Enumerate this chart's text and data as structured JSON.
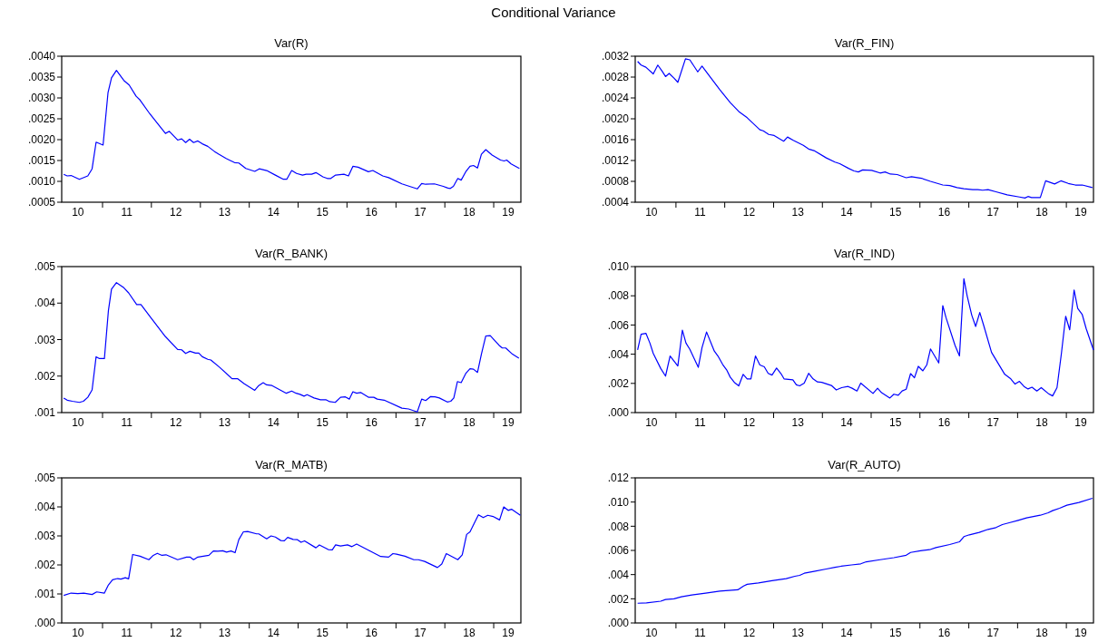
{
  "chart_data": [
    {
      "type": "line",
      "title": "Var(R)",
      "annotations": [
        "Conditional Variance"
      ],
      "xlim": [
        "2010-03-02",
        "2019-07-23"
      ],
      "ylim": [
        0.0005,
        0.004
      ],
      "grid": false,
      "xticks": [
        {
          "value": "2010-07-01",
          "label": "10"
        },
        {
          "value": "2011-01-01",
          "label": null
        },
        {
          "value": "2011-07-01",
          "label": "11"
        },
        {
          "value": "2012-01-01",
          "label": null
        },
        {
          "value": "2012-07-01",
          "label": "12"
        },
        {
          "value": "2013-01-01",
          "label": null
        },
        {
          "value": "2013-07-01",
          "label": "13"
        },
        {
          "value": "2014-01-01",
          "label": null
        },
        {
          "value": "2014-07-01",
          "label": "14"
        },
        {
          "value": "2015-01-01",
          "label": null
        },
        {
          "value": "2015-07-01",
          "label": "15"
        },
        {
          "value": "2016-01-01",
          "label": null
        },
        {
          "value": "2016-07-01",
          "label": "16"
        },
        {
          "value": "2017-01-01",
          "label": null
        },
        {
          "value": "2017-07-01",
          "label": "17"
        },
        {
          "value": "2018-01-01",
          "label": null
        },
        {
          "value": "2018-07-01",
          "label": "18"
        },
        {
          "value": "2019-01-01",
          "label": null
        },
        {
          "value": "2019-04-19",
          "label": "19"
        }
      ],
      "yticks": [
        {
          "value": 0.0005,
          "label": ".0005"
        },
        {
          "value": 0.001,
          "label": ".0010"
        },
        {
          "value": 0.0015,
          "label": ".0015"
        },
        {
          "value": 0.002,
          "label": ".0020"
        },
        {
          "value": 0.0025,
          "label": ".0025"
        },
        {
          "value": 0.003,
          "label": ".0030"
        },
        {
          "value": 0.0035,
          "label": ".0035"
        },
        {
          "value": 0.004,
          "label": ".0040"
        }
      ],
      "series": [
        {
          "color": "#0000ff",
          "x": [
            "2010-03-17",
            "2010-04-12",
            "2010-05-11",
            "2010-07-12",
            "2010-09-13",
            "2010-10-15",
            "2010-11-14",
            "2011-01-05",
            "2011-02-11",
            "2011-03-09",
            "2011-04-15",
            "2011-06-09",
            "2011-07-19",
            "2011-09-09",
            "2011-10-08",
            "2011-12-20",
            "2012-02-25",
            "2012-04-15",
            "2012-05-14",
            "2012-07-15",
            "2012-08-14",
            "2012-09-13",
            "2012-10-12",
            "2012-11-11",
            "2012-12-13",
            "2013-01-15",
            "2013-02-25",
            "2013-04-15",
            "2013-05-18",
            "2013-07-12",
            "2013-09-13",
            "2013-10-15",
            "2013-12-06",
            "2014-02-11",
            "2014-03-17",
            "2014-05-11",
            "2014-07-15",
            "2014-09-13",
            "2014-10-08",
            "2014-11-14",
            "2014-12-20",
            "2015-02-03",
            "2015-03-02",
            "2015-04-12",
            "2015-05-14",
            "2015-07-05",
            "2015-08-07",
            "2015-09-02",
            "2015-10-08",
            "2015-12-09",
            "2016-01-12",
            "2016-02-14",
            "2016-03-24",
            "2016-06-09",
            "2016-07-12",
            "2016-09-24",
            "2016-11-07",
            "2017-02-14",
            "2017-04-12",
            "2017-06-09",
            "2017-07-12",
            "2017-08-11",
            "2017-10-15",
            "2017-12-20",
            "2018-01-23",
            "2018-02-11",
            "2018-03-06",
            "2018-04-08",
            "2018-05-03",
            "2018-06-06",
            "2018-07-08",
            "2018-08-03",
            "2018-09-02",
            "2018-10-01",
            "2018-11-03",
            "2018-12-20",
            "2019-02-21",
            "2019-03-20",
            "2019-04-08",
            "2019-05-11",
            "2019-07-12"
          ],
          "values": [
            0.00117,
            0.00113,
            0.00114,
            0.00105,
            0.00113,
            0.0013,
            0.00194,
            0.00187,
            0.00313,
            0.00348,
            0.00366,
            0.00342,
            0.00331,
            0.00304,
            0.00295,
            0.00262,
            0.00235,
            0.00215,
            0.0022,
            0.00199,
            0.00202,
            0.00193,
            0.00201,
            0.00193,
            0.00197,
            0.0019,
            0.00184,
            0.00172,
            0.00165,
            0.00155,
            0.00145,
            0.00144,
            0.00131,
            0.00124,
            0.0013,
            0.00126,
            0.00115,
            0.00105,
            0.00105,
            0.00126,
            0.00119,
            0.00115,
            0.00117,
            0.00117,
            0.00121,
            0.00111,
            0.00107,
            0.00107,
            0.00115,
            0.00117,
            0.00113,
            0.00136,
            0.00134,
            0.00123,
            0.00126,
            0.00113,
            0.00109,
            0.00094,
            0.00088,
            0.00082,
            0.00095,
            0.00093,
            0.00094,
            0.00088,
            0.00084,
            0.00083,
            0.00088,
            0.00107,
            0.00103,
            0.00123,
            0.00136,
            0.00138,
            0.00132,
            0.00165,
            0.00176,
            0.00163,
            0.00151,
            0.00149,
            0.00151,
            0.00142,
            0.00131
          ]
        }
      ]
    },
    {
      "type": "line",
      "title": "Var(R_FIN)",
      "xlim": [
        "2010-03-02",
        "2019-07-23"
      ],
      "ylim": [
        0.0004,
        0.0032
      ],
      "grid": false,
      "xticks": [
        {
          "value": "2010-07-01",
          "label": "10"
        },
        {
          "value": "2011-01-01",
          "label": null
        },
        {
          "value": "2011-07-01",
          "label": "11"
        },
        {
          "value": "2012-01-01",
          "label": null
        },
        {
          "value": "2012-07-01",
          "label": "12"
        },
        {
          "value": "2013-01-01",
          "label": null
        },
        {
          "value": "2013-07-01",
          "label": "13"
        },
        {
          "value": "2014-01-01",
          "label": null
        },
        {
          "value": "2014-07-01",
          "label": "14"
        },
        {
          "value": "2015-01-01",
          "label": null
        },
        {
          "value": "2015-07-01",
          "label": "15"
        },
        {
          "value": "2016-01-01",
          "label": null
        },
        {
          "value": "2016-07-01",
          "label": "16"
        },
        {
          "value": "2017-01-01",
          "label": null
        },
        {
          "value": "2017-07-01",
          "label": "17"
        },
        {
          "value": "2018-01-01",
          "label": null
        },
        {
          "value": "2018-07-01",
          "label": "18"
        },
        {
          "value": "2019-01-01",
          "label": null
        },
        {
          "value": "2019-04-19",
          "label": "19"
        }
      ],
      "yticks": [
        {
          "value": 0.0004,
          "label": ".0004"
        },
        {
          "value": 0.0008,
          "label": ".0008"
        },
        {
          "value": 0.0012,
          "label": ".0012"
        },
        {
          "value": 0.0016,
          "label": ".0016"
        },
        {
          "value": 0.002,
          "label": ".0020"
        },
        {
          "value": 0.0024,
          "label": ".0024"
        },
        {
          "value": 0.0028,
          "label": ".0028"
        },
        {
          "value": 0.0032,
          "label": ".0032"
        }
      ],
      "series": [
        {
          "color": "#0000ff",
          "x": [
            "2010-03-20",
            "2010-04-15",
            "2010-05-21",
            "2010-07-15",
            "2010-08-18",
            "2010-09-20",
            "2010-10-15",
            "2010-11-11",
            "2010-12-17",
            "2011-01-15",
            "2011-03-13",
            "2011-04-15",
            "2011-06-13",
            "2011-07-15",
            "2011-09-09",
            "2011-11-25",
            "2012-02-11",
            "2012-04-15",
            "2012-06-17",
            "2012-09-20",
            "2012-10-15",
            "2012-11-25",
            "2013-01-05",
            "2013-02-11",
            "2013-03-17",
            "2013-04-15",
            "2013-05-25",
            "2013-08-11",
            "2013-09-20",
            "2013-10-30",
            "2014-01-30",
            "2014-04-05",
            "2014-05-11",
            "2014-07-15",
            "2014-08-25",
            "2014-09-27",
            "2014-10-30",
            "2015-01-05",
            "2015-03-09",
            "2015-04-15",
            "2015-05-25",
            "2015-07-15",
            "2015-09-20",
            "2015-10-30",
            "2016-01-12",
            "2016-03-20",
            "2016-06-20",
            "2016-08-11",
            "2016-10-05",
            "2016-11-25",
            "2017-01-30",
            "2017-03-09",
            "2017-04-15",
            "2017-05-25",
            "2017-07-23",
            "2017-10-15",
            "2018-01-15",
            "2018-02-25",
            "2018-03-20",
            "2018-04-15",
            "2018-06-20",
            "2018-07-30",
            "2018-10-05",
            "2018-11-21",
            "2019-01-15",
            "2019-03-09",
            "2019-04-30",
            "2019-07-15"
          ],
          "values": [
            0.0031,
            0.00303,
            0.00299,
            0.00286,
            0.00303,
            0.00291,
            0.00281,
            0.00287,
            0.00278,
            0.0027,
            0.00315,
            0.00313,
            0.0029,
            0.00301,
            0.00282,
            0.00256,
            0.00231,
            0.00214,
            0.00202,
            0.00179,
            0.00177,
            0.0017,
            0.00168,
            0.00162,
            0.00157,
            0.00165,
            0.00159,
            0.00149,
            0.00142,
            0.00139,
            0.00125,
            0.00117,
            0.00114,
            0.00105,
            0.001,
            0.00098,
            0.00102,
            0.00101,
            0.00096,
            0.00098,
            0.00094,
            0.00093,
            0.00087,
            0.00089,
            0.00086,
            0.0008,
            0.00073,
            0.00072,
            0.00068,
            0.00066,
            0.00064,
            0.00064,
            0.00063,
            0.00064,
            0.0006,
            0.00054,
            0.0005,
            0.00048,
            0.00051,
            0.00049,
            0.00049,
            0.00081,
            0.00075,
            0.00081,
            0.00076,
            0.00073,
            0.00073,
            0.00068
          ]
        }
      ]
    },
    {
      "type": "line",
      "title": "Var(R_BANK)",
      "xlim": [
        "2010-03-02",
        "2019-07-23"
      ],
      "ylim": [
        0.001,
        0.005
      ],
      "grid": false,
      "xticks": [
        {
          "value": "2010-07-01",
          "label": "10"
        },
        {
          "value": "2011-01-01",
          "label": null
        },
        {
          "value": "2011-07-01",
          "label": "11"
        },
        {
          "value": "2012-01-01",
          "label": null
        },
        {
          "value": "2012-07-01",
          "label": "12"
        },
        {
          "value": "2013-01-01",
          "label": null
        },
        {
          "value": "2013-07-01",
          "label": "13"
        },
        {
          "value": "2014-01-01",
          "label": null
        },
        {
          "value": "2014-07-01",
          "label": "14"
        },
        {
          "value": "2015-01-01",
          "label": null
        },
        {
          "value": "2015-07-01",
          "label": "15"
        },
        {
          "value": "2016-01-01",
          "label": null
        },
        {
          "value": "2016-07-01",
          "label": "16"
        },
        {
          "value": "2017-01-01",
          "label": null
        },
        {
          "value": "2017-07-01",
          "label": "17"
        },
        {
          "value": "2018-01-01",
          "label": null
        },
        {
          "value": "2018-07-01",
          "label": "18"
        },
        {
          "value": "2019-01-01",
          "label": null
        },
        {
          "value": "2019-04-19",
          "label": "19"
        }
      ],
      "yticks": [
        {
          "value": 0.001,
          "label": ".001"
        },
        {
          "value": 0.002,
          "label": ".002"
        },
        {
          "value": 0.003,
          "label": ".003"
        },
        {
          "value": 0.004,
          "label": ".004"
        },
        {
          "value": 0.005,
          "label": ".005"
        }
      ],
      "series": [
        {
          "color": "#0000ff",
          "x": [
            "2010-03-17",
            "2010-04-12",
            "2010-05-21",
            "2010-07-12",
            "2010-08-11",
            "2010-09-13",
            "2010-10-15",
            "2010-11-14",
            "2010-12-09",
            "2011-01-15",
            "2011-02-14",
            "2011-03-09",
            "2011-04-15",
            "2011-06-09",
            "2011-07-15",
            "2011-09-13",
            "2011-10-15",
            "2012-01-01",
            "2012-04-15",
            "2012-07-15",
            "2012-08-14",
            "2012-09-13",
            "2012-10-15",
            "2012-11-25",
            "2012-12-20",
            "2013-01-15",
            "2013-02-25",
            "2013-03-20",
            "2013-05-25",
            "2013-08-25",
            "2013-10-05",
            "2013-11-25",
            "2014-02-11",
            "2014-03-13",
            "2014-04-15",
            "2014-05-11",
            "2014-06-20",
            "2014-10-05",
            "2014-11-14",
            "2014-12-17",
            "2015-01-15",
            "2015-02-14",
            "2015-03-09",
            "2015-04-30",
            "2015-06-17",
            "2015-07-30",
            "2015-08-25",
            "2015-10-05",
            "2015-11-14",
            "2015-12-20",
            "2016-01-19",
            "2016-02-14",
            "2016-03-13",
            "2016-04-12",
            "2016-06-09",
            "2016-07-19",
            "2016-08-14",
            "2016-10-05",
            "2017-02-14",
            "2017-04-05",
            "2017-06-09",
            "2017-07-12",
            "2017-08-11",
            "2017-09-17",
            "2017-10-19",
            "2017-11-21",
            "2018-01-19",
            "2018-02-14",
            "2018-03-09",
            "2018-04-05",
            "2018-05-03",
            "2018-06-06",
            "2018-07-08",
            "2018-08-03",
            "2018-09-02",
            "2018-10-01",
            "2018-11-03",
            "2018-12-06",
            "2019-02-11",
            "2019-03-06",
            "2019-04-01",
            "2019-05-21",
            "2019-07-08"
          ],
          "values": [
            0.0014,
            0.00134,
            0.00131,
            0.00128,
            0.00131,
            0.00142,
            0.00162,
            0.00253,
            0.00248,
            0.00248,
            0.0038,
            0.00438,
            0.00456,
            0.00442,
            0.00428,
            0.00396,
            0.00396,
            0.00358,
            0.00308,
            0.00273,
            0.00272,
            0.00262,
            0.00268,
            0.00263,
            0.00263,
            0.00253,
            0.00246,
            0.00244,
            0.00224,
            0.00193,
            0.00193,
            0.00179,
            0.00161,
            0.00174,
            0.00182,
            0.00176,
            0.00174,
            0.00153,
            0.00159,
            0.00153,
            0.0015,
            0.00145,
            0.00149,
            0.0014,
            0.00135,
            0.00135,
            0.0013,
            0.00128,
            0.00142,
            0.00143,
            0.00137,
            0.00157,
            0.00153,
            0.00155,
            0.00142,
            0.00142,
            0.00137,
            0.00134,
            0.00112,
            0.0011,
            0.00102,
            0.00137,
            0.00133,
            0.00144,
            0.00143,
            0.0014,
            0.00129,
            0.00131,
            0.0014,
            0.00185,
            0.00182,
            0.00207,
            0.0022,
            0.00219,
            0.0021,
            0.0026,
            0.0031,
            0.00311,
            0.00284,
            0.00277,
            0.00277,
            0.0026,
            0.00249
          ]
        }
      ]
    },
    {
      "type": "line",
      "title": "Var(R_IND)",
      "xlim": [
        "2010-03-02",
        "2019-07-23"
      ],
      "ylim": [
        0,
        0.01
      ],
      "grid": false,
      "xticks": [
        {
          "value": "2010-07-01",
          "label": "10"
        },
        {
          "value": "2011-01-01",
          "label": null
        },
        {
          "value": "2011-07-01",
          "label": "11"
        },
        {
          "value": "2012-01-01",
          "label": null
        },
        {
          "value": "2012-07-01",
          "label": "12"
        },
        {
          "value": "2013-01-01",
          "label": null
        },
        {
          "value": "2013-07-01",
          "label": "13"
        },
        {
          "value": "2014-01-01",
          "label": null
        },
        {
          "value": "2014-07-01",
          "label": "14"
        },
        {
          "value": "2015-01-01",
          "label": null
        },
        {
          "value": "2015-07-01",
          "label": "15"
        },
        {
          "value": "2016-01-01",
          "label": null
        },
        {
          "value": "2016-07-01",
          "label": "16"
        },
        {
          "value": "2017-01-01",
          "label": null
        },
        {
          "value": "2017-07-01",
          "label": "17"
        },
        {
          "value": "2018-01-01",
          "label": null
        },
        {
          "value": "2018-07-01",
          "label": "18"
        },
        {
          "value": "2019-01-01",
          "label": null
        },
        {
          "value": "2019-04-19",
          "label": "19"
        }
      ],
      "yticks": [
        {
          "value": 0,
          "label": ".000"
        },
        {
          "value": 0.002,
          "label": ".002"
        },
        {
          "value": 0.004,
          "label": ".004"
        },
        {
          "value": 0.006,
          "label": ".006"
        },
        {
          "value": 0.008,
          "label": ".008"
        },
        {
          "value": 0.01,
          "label": ".010"
        }
      ],
      "series": [
        {
          "color": "#0000ff",
          "x": [
            "2010-03-20",
            "2010-04-15",
            "2010-05-21",
            "2010-06-20",
            "2010-07-15",
            "2010-09-09",
            "2010-10-15",
            "2010-11-18",
            "2011-01-15",
            "2011-02-18",
            "2011-03-17",
            "2011-04-15",
            "2011-06-17",
            "2011-07-15",
            "2011-08-18",
            "2011-10-15",
            "2011-11-11",
            "2011-12-17",
            "2012-01-15",
            "2012-02-11",
            "2012-03-13",
            "2012-04-15",
            "2012-05-18",
            "2012-06-17",
            "2012-07-15",
            "2012-08-18",
            "2012-09-20",
            "2012-10-23",
            "2012-11-21",
            "2012-12-20",
            "2013-01-23",
            "2013-02-25",
            "2013-03-20",
            "2013-05-25",
            "2013-06-20",
            "2013-07-15",
            "2013-08-18",
            "2013-09-20",
            "2013-10-23",
            "2013-11-25",
            "2013-12-27",
            "2014-03-09",
            "2014-04-15",
            "2014-05-25",
            "2014-07-12",
            "2014-08-11",
            "2014-09-17",
            "2014-10-15",
            "2015-01-15",
            "2015-02-18",
            "2015-03-20",
            "2015-05-21",
            "2015-06-20",
            "2015-07-23",
            "2015-08-21",
            "2015-09-20",
            "2015-10-23",
            "2015-11-21",
            "2015-12-20",
            "2016-01-23",
            "2016-02-21",
            "2016-03-20",
            "2016-05-21",
            "2016-06-20",
            "2016-07-15",
            "2016-09-20",
            "2016-10-23",
            "2016-11-25",
            "2016-12-20",
            "2017-01-23",
            "2017-02-21",
            "2017-03-24",
            "2017-04-23",
            "2017-06-20",
            "2017-09-27",
            "2017-11-11",
            "2017-12-13",
            "2018-01-15",
            "2018-02-18",
            "2018-03-20",
            "2018-04-19",
            "2018-05-25",
            "2018-06-27",
            "2018-08-18",
            "2018-09-20",
            "2018-10-23",
            "2018-11-25",
            "2018-12-27",
            "2019-01-26",
            "2019-02-28",
            "2019-03-27",
            "2019-04-30",
            "2019-05-29",
            "2019-07-23"
          ],
          "values": [
            0.00429,
            0.00536,
            0.00543,
            0.00476,
            0.00405,
            0.00302,
            0.0025,
            0.00388,
            0.00319,
            0.00564,
            0.00476,
            0.00433,
            0.0031,
            0.00445,
            0.00552,
            0.00421,
            0.00388,
            0.00329,
            0.00293,
            0.00243,
            0.00207,
            0.00183,
            0.00262,
            0.00231,
            0.00231,
            0.00388,
            0.00326,
            0.00314,
            0.00269,
            0.00257,
            0.00305,
            0.00267,
            0.00231,
            0.00224,
            0.0019,
            0.00183,
            0.00202,
            0.00269,
            0.00231,
            0.0021,
            0.00207,
            0.00186,
            0.00155,
            0.00171,
            0.00179,
            0.00167,
            0.00148,
            0.00202,
            0.00131,
            0.00167,
            0.00136,
            0.001,
            0.00126,
            0.00119,
            0.00148,
            0.0016,
            0.00267,
            0.00238,
            0.00317,
            0.00286,
            0.00326,
            0.00436,
            0.0034,
            0.00733,
            0.00648,
            0.0046,
            0.00388,
            0.00917,
            0.00798,
            0.00667,
            0.0059,
            0.00686,
            0.00595,
            0.00412,
            0.00262,
            0.00231,
            0.00195,
            0.00214,
            0.00179,
            0.00162,
            0.00174,
            0.00148,
            0.00171,
            0.00131,
            0.00114,
            0.00171,
            0.00405,
            0.0066,
            0.00567,
            0.0084,
            0.00714,
            0.00671,
            0.00576,
            0.00429
          ]
        }
      ]
    },
    {
      "type": "line",
      "title": "Var(R_MATB)",
      "xlim": [
        "2010-03-02",
        "2019-07-23"
      ],
      "ylim": [
        0,
        0.005
      ],
      "grid": false,
      "xticks": [
        {
          "value": "2010-07-01",
          "label": "10"
        },
        {
          "value": "2011-01-01",
          "label": null
        },
        {
          "value": "2011-07-01",
          "label": "11"
        },
        {
          "value": "2012-01-01",
          "label": null
        },
        {
          "value": "2012-07-01",
          "label": "12"
        },
        {
          "value": "2013-01-01",
          "label": null
        },
        {
          "value": "2013-07-01",
          "label": "13"
        },
        {
          "value": "2014-01-01",
          "label": null
        },
        {
          "value": "2014-07-01",
          "label": "14"
        },
        {
          "value": "2015-01-01",
          "label": null
        },
        {
          "value": "2015-07-01",
          "label": "15"
        },
        {
          "value": "2016-01-01",
          "label": null
        },
        {
          "value": "2016-07-01",
          "label": "16"
        },
        {
          "value": "2017-01-01",
          "label": null
        },
        {
          "value": "2017-07-01",
          "label": "17"
        },
        {
          "value": "2018-01-01",
          "label": null
        },
        {
          "value": "2018-07-01",
          "label": "18"
        },
        {
          "value": "2019-01-01",
          "label": null
        },
        {
          "value": "2019-04-19",
          "label": "19"
        }
      ],
      "yticks": [
        {
          "value": 0,
          "label": ".000"
        },
        {
          "value": 0.001,
          "label": ".001"
        },
        {
          "value": 0.002,
          "label": ".002"
        },
        {
          "value": 0.003,
          "label": ".003"
        },
        {
          "value": 0.004,
          "label": ".004"
        },
        {
          "value": 0.005,
          "label": ".005"
        }
      ],
      "series": [
        {
          "color": "#0000ff",
          "x": [
            "2010-03-17",
            "2010-05-11",
            "2010-07-01",
            "2010-08-14",
            "2010-10-15",
            "2010-11-18",
            "2011-01-15",
            "2011-02-14",
            "2011-03-17",
            "2011-04-23",
            "2011-05-18",
            "2011-06-20",
            "2011-07-15",
            "2011-08-14",
            "2011-10-08",
            "2011-12-13",
            "2012-01-15",
            "2012-02-14",
            "2012-03-20",
            "2012-04-19",
            "2012-07-15",
            "2012-09-20",
            "2012-10-15",
            "2012-11-11",
            "2012-12-13",
            "2013-03-06",
            "2013-04-08",
            "2013-05-11",
            "2013-06-17",
            "2013-07-15",
            "2013-08-18",
            "2013-09-17",
            "2013-10-15",
            "2013-11-18",
            "2013-12-20",
            "2014-02-25",
            "2014-03-13",
            "2014-05-11",
            "2014-06-13",
            "2014-07-15",
            "2014-08-25",
            "2014-09-20",
            "2014-10-15",
            "2014-11-25",
            "2014-12-27",
            "2015-01-23",
            "2015-02-18",
            "2015-05-14",
            "2015-06-09",
            "2015-08-14",
            "2015-09-13",
            "2015-10-08",
            "2015-11-14",
            "2016-01-05",
            "2016-02-07",
            "2016-03-13",
            "2016-09-09",
            "2016-11-07",
            "2016-12-09",
            "2017-01-05",
            "2017-03-09",
            "2017-05-14",
            "2017-06-17",
            "2017-08-03",
            "2017-11-07",
            "2017-12-09",
            "2018-01-12",
            "2018-04-08",
            "2018-05-11",
            "2018-06-13",
            "2018-07-08",
            "2018-09-09",
            "2018-10-15",
            "2018-11-18",
            "2018-12-27",
            "2019-02-14",
            "2019-03-17",
            "2019-04-19",
            "2019-05-14",
            "2019-07-19"
          ],
          "values": [
            0.00095,
            0.00103,
            0.00101,
            0.00103,
            0.00098,
            0.00107,
            0.00103,
            0.00131,
            0.00149,
            0.00153,
            0.00151,
            0.00156,
            0.00152,
            0.00236,
            0.0023,
            0.00218,
            0.00233,
            0.0024,
            0.00233,
            0.00235,
            0.00218,
            0.00227,
            0.00227,
            0.00218,
            0.00227,
            0.00233,
            0.00248,
            0.00247,
            0.00249,
            0.00244,
            0.00248,
            0.00242,
            0.00287,
            0.00314,
            0.00315,
            0.00307,
            0.00307,
            0.0029,
            0.003,
            0.00296,
            0.00284,
            0.00283,
            0.00295,
            0.00288,
            0.00287,
            0.00278,
            0.00283,
            0.00259,
            0.00269,
            0.00253,
            0.00252,
            0.00269,
            0.00265,
            0.00269,
            0.00263,
            0.00272,
            0.00229,
            0.00227,
            0.00239,
            0.00237,
            0.0023,
            0.00218,
            0.00218,
            0.00212,
            0.00191,
            0.00203,
            0.00239,
            0.00218,
            0.00235,
            0.00305,
            0.00314,
            0.00373,
            0.00363,
            0.00371,
            0.00367,
            0.00355,
            0.004,
            0.00388,
            0.00392,
            0.00371
          ]
        }
      ]
    },
    {
      "type": "line",
      "title": "Var(R_AUTO)",
      "xlim": [
        "2010-03-02",
        "2019-07-23"
      ],
      "ylim": [
        0,
        0.012
      ],
      "grid": false,
      "xticks": [
        {
          "value": "2010-07-01",
          "label": "10"
        },
        {
          "value": "2011-01-01",
          "label": null
        },
        {
          "value": "2011-07-01",
          "label": "11"
        },
        {
          "value": "2012-01-01",
          "label": null
        },
        {
          "value": "2012-07-01",
          "label": "12"
        },
        {
          "value": "2013-01-01",
          "label": null
        },
        {
          "value": "2013-07-01",
          "label": "13"
        },
        {
          "value": "2014-01-01",
          "label": null
        },
        {
          "value": "2014-07-01",
          "label": "14"
        },
        {
          "value": "2015-01-01",
          "label": null
        },
        {
          "value": "2015-07-01",
          "label": "15"
        },
        {
          "value": "2016-01-01",
          "label": null
        },
        {
          "value": "2016-07-01",
          "label": "16"
        },
        {
          "value": "2017-01-01",
          "label": null
        },
        {
          "value": "2017-07-01",
          "label": "17"
        },
        {
          "value": "2018-01-01",
          "label": null
        },
        {
          "value": "2018-07-01",
          "label": "18"
        },
        {
          "value": "2019-01-01",
          "label": null
        },
        {
          "value": "2019-04-19",
          "label": "19"
        }
      ],
      "yticks": [
        {
          "value": 0,
          "label": ".000"
        },
        {
          "value": 0.002,
          "label": ".002"
        },
        {
          "value": 0.004,
          "label": ".004"
        },
        {
          "value": 0.006,
          "label": ".006"
        },
        {
          "value": 0.008,
          "label": ".008"
        },
        {
          "value": 0.01,
          "label": ".010"
        },
        {
          "value": 0.012,
          "label": ".012"
        }
      ],
      "series": [
        {
          "color": "#0000ff",
          "x": [
            "2010-03-20",
            "2010-05-25",
            "2010-09-09",
            "2010-10-15",
            "2010-12-17",
            "2011-02-11",
            "2011-04-30",
            "2011-08-11",
            "2011-11-25",
            "2012-04-08",
            "2012-05-21",
            "2012-06-17",
            "2012-09-09",
            "2012-12-20",
            "2013-04-05",
            "2013-06-09",
            "2013-07-15",
            "2013-08-18",
            "2013-10-30",
            "2014-01-30",
            "2014-04-05",
            "2014-05-21",
            "2014-08-07",
            "2014-10-15",
            "2014-11-25",
            "2015-03-09",
            "2015-06-20",
            "2015-09-20",
            "2015-10-23",
            "2016-01-05",
            "2016-03-13",
            "2016-04-30",
            "2016-08-11",
            "2016-10-23",
            "2016-11-25",
            "2017-01-05",
            "2017-03-20",
            "2017-05-25",
            "2017-07-23",
            "2017-09-09",
            "2017-10-30",
            "2018-01-05",
            "2018-03-09",
            "2018-06-20",
            "2018-08-18",
            "2018-09-20",
            "2018-11-11",
            "2019-01-05",
            "2019-04-05",
            "2019-07-15"
          ],
          "values": [
            0.00163,
            0.00166,
            0.0018,
            0.00194,
            0.002,
            0.00217,
            0.00231,
            0.00246,
            0.00263,
            0.00274,
            0.00306,
            0.0032,
            0.00331,
            0.00349,
            0.00366,
            0.00386,
            0.00394,
            0.00411,
            0.00426,
            0.00446,
            0.0046,
            0.00469,
            0.0048,
            0.00489,
            0.00506,
            0.00523,
            0.0054,
            0.0056,
            0.00583,
            0.00597,
            0.00606,
            0.00623,
            0.00649,
            0.00671,
            0.00714,
            0.00729,
            0.00749,
            0.00774,
            0.00789,
            0.00814,
            0.00829,
            0.00849,
            0.00869,
            0.00891,
            0.00911,
            0.00929,
            0.00949,
            0.00974,
            0.00997,
            0.01031
          ]
        }
      ]
    }
  ]
}
